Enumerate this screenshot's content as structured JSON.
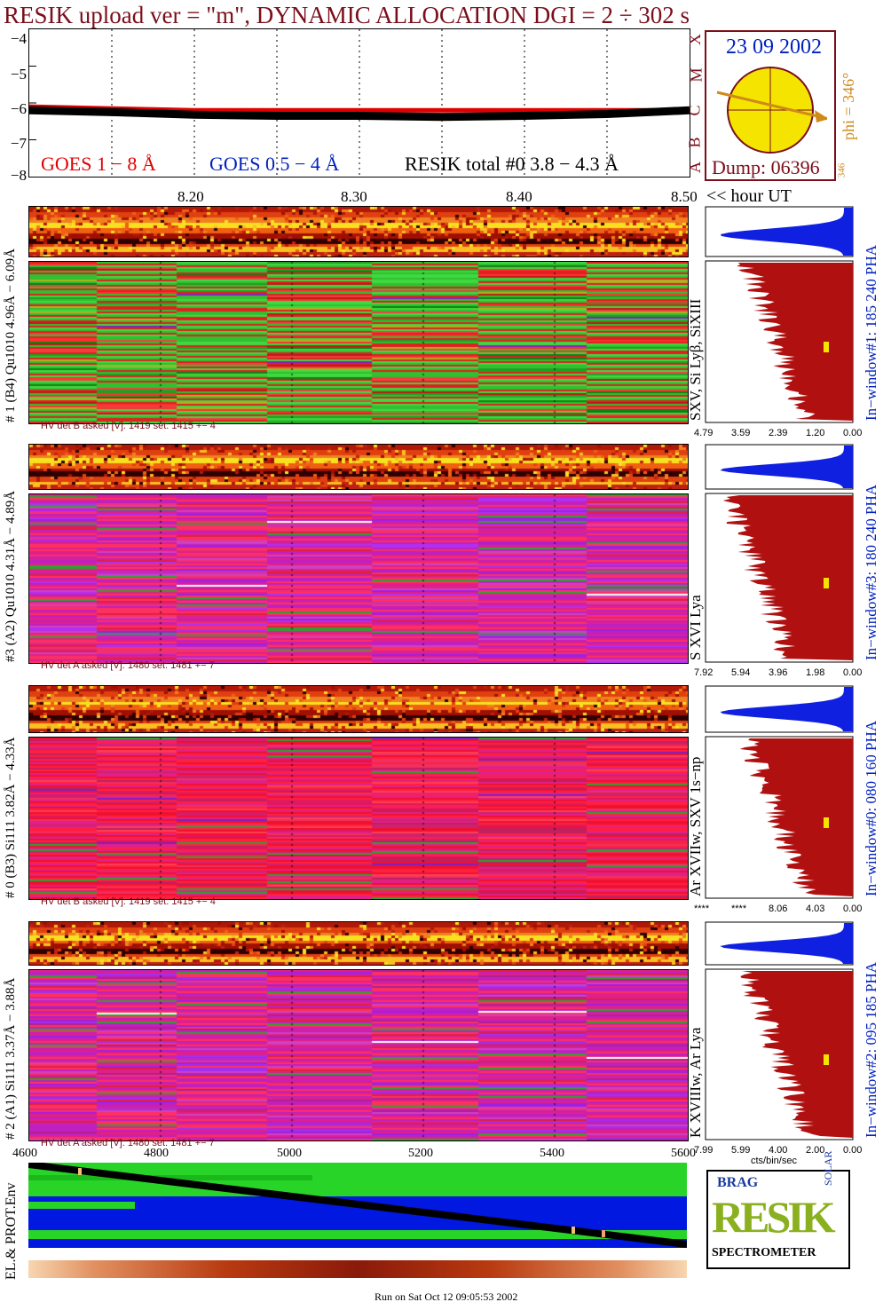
{
  "title": "RESIK upload ver = \"m\", DYNAMIC ALLOCATION  DGI =   2 ÷ 302 s",
  "goes_panel": {
    "yticks": [
      "−4",
      "−5",
      "−6",
      "−7",
      "−8"
    ],
    "legend_goes1": "GOES 1 − 8 Å",
    "legend_goes2": "GOES 0.5 − 4 Å",
    "legend_resik": "RESIK total #0  3.8 − 4.3 Å",
    "class_letters": [
      "X",
      "M",
      "C",
      "B",
      "A"
    ],
    "hour_ticks": [
      "8.20",
      "8.30",
      "8.40",
      "8.50"
    ],
    "hour_unit": "<< hour UT"
  },
  "sun_panel": {
    "date": "23 09 2002",
    "phi_label": "phi = 346°",
    "phi_small": "346",
    "dump": "Dump: 06396",
    "sun_color": "#f5e400"
  },
  "detectors": [
    {
      "label": "# 1 (B4) Qu1010 4.96Å − 6.09Å",
      "lines": "SXV, Si Lyβ, SiXIII",
      "window": "In−window#1:  185 240 PHA",
      "hv": "HV det B asked [V]:  1419 set:  1415  +−    4",
      "hist_ticks": [
        "4.79",
        "3.59",
        "2.39",
        "1.20",
        "0.00"
      ]
    },
    {
      "label": "#3 (A2) Qu1010  4.31Å − 4.89Å",
      "lines": "S XVI Lya",
      "window": "In−window#3:  180 240 PHA",
      "hv": "HV det A asked [V]:  1480 set:  1481  +−    7",
      "hist_ticks": [
        "7.92",
        "5.94",
        "3.96",
        "1.98",
        "0.00"
      ]
    },
    {
      "label": "# 0 (B3) Si111  3.82Å − 4.33Å",
      "lines": "Ar XVIIw, SXV 1s−np",
      "window": "In−window#0:  080 160 PHA",
      "hv": "HV det B asked [V]:  1419 set:  1415  +−    4",
      "hist_ticks": [
        "****",
        "****",
        "8.06",
        "4.03",
        "0.00"
      ]
    },
    {
      "label": "# 2 (A1) Si111  3.37Å − 3.88Å",
      "lines": "K XVIIIw, Ar Lya",
      "window": "In−window#2:  095 185 PHA",
      "hv": "HV det A asked [V]:  1480 set:  1481  +−    7",
      "hist_ticks": [
        "7.99",
        "5.99",
        "4.00",
        "2.00",
        "0.00"
      ]
    }
  ],
  "hist_unit": "cts/bin/sec",
  "bottom_panel": {
    "label": "EL.& PROT.Env",
    "xticks": [
      "4600",
      "4800",
      "5000",
      "5200",
      "5400",
      "5600"
    ]
  },
  "logo": {
    "letters": "RESIK",
    "top_words": [
      "BRAG",
      "SOLAR"
    ],
    "caption": "SPECTROMETER"
  },
  "footer": "Run on Sat Oct 12 09:05:53 2002",
  "chart_data": {
    "type": "line",
    "xlabel": "<< hour UT",
    "xlim": [
      8.1,
      8.5
    ],
    "ylim": [
      -8,
      -4
    ],
    "series": [
      {
        "name": "GOES 1 − 8 Å",
        "color": "#e00000",
        "x": [
          8.1,
          8.15,
          8.2,
          8.25,
          8.3,
          8.35,
          8.4,
          8.45,
          8.5
        ],
        "y": [
          -6.1,
          -6.15,
          -6.2,
          -6.2,
          -6.2,
          -6.2,
          -6.2,
          -6.2,
          -6.2
        ]
      },
      {
        "name": "RESIK total #0  3.8 − 4.3 Å",
        "color": "#000000",
        "x": [
          8.1,
          8.15,
          8.2,
          8.25,
          8.3,
          8.35,
          8.4,
          8.45,
          8.5
        ],
        "y": [
          -6.2,
          -6.25,
          -6.32,
          -6.35,
          -6.35,
          -6.38,
          -6.35,
          -6.3,
          -6.2
        ]
      }
    ]
  }
}
